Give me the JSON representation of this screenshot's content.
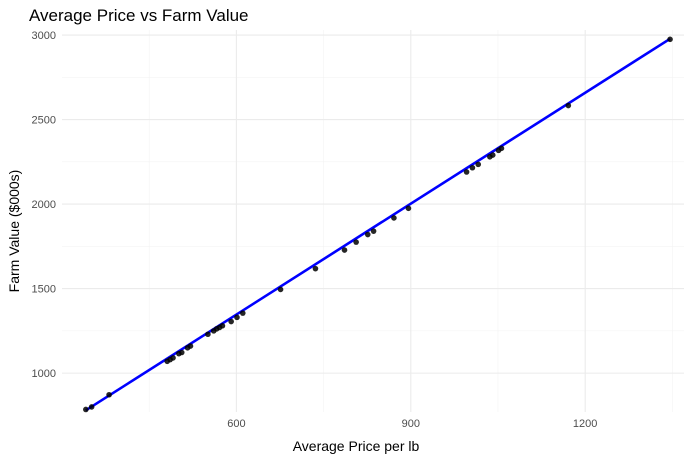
{
  "chart_data": {
    "type": "scatter",
    "title": "Average Price vs Farm Value",
    "xlabel": "Average Price per lb",
    "ylabel": "Farm Value ($000s)",
    "xlim": [
      300,
      1370
    ],
    "ylim": [
      770,
      3030
    ],
    "x_ticks": [
      600,
      900,
      1200
    ],
    "y_ticks": [
      1000,
      1500,
      2000,
      2500,
      3000
    ],
    "grid": true,
    "points_color": "#000000",
    "points": [
      {
        "x": 341,
        "y": 785
      },
      {
        "x": 351,
        "y": 800
      },
      {
        "x": 381,
        "y": 872
      },
      {
        "x": 481,
        "y": 1070
      },
      {
        "x": 486,
        "y": 1080
      },
      {
        "x": 491,
        "y": 1090
      },
      {
        "x": 501,
        "y": 1115
      },
      {
        "x": 506,
        "y": 1122
      },
      {
        "x": 516,
        "y": 1150
      },
      {
        "x": 521,
        "y": 1160
      },
      {
        "x": 551,
        "y": 1230
      },
      {
        "x": 561,
        "y": 1250
      },
      {
        "x": 566,
        "y": 1262
      },
      {
        "x": 571,
        "y": 1270
      },
      {
        "x": 576,
        "y": 1280
      },
      {
        "x": 591,
        "y": 1305
      },
      {
        "x": 601,
        "y": 1330
      },
      {
        "x": 611,
        "y": 1355
      },
      {
        "x": 676,
        "y": 1495
      },
      {
        "x": 736,
        "y": 1618
      },
      {
        "x": 786,
        "y": 1728
      },
      {
        "x": 806,
        "y": 1775
      },
      {
        "x": 826,
        "y": 1820
      },
      {
        "x": 836,
        "y": 1840
      },
      {
        "x": 871,
        "y": 1918
      },
      {
        "x": 896,
        "y": 1975
      },
      {
        "x": 996,
        "y": 2190
      },
      {
        "x": 1006,
        "y": 2215
      },
      {
        "x": 1016,
        "y": 2235
      },
      {
        "x": 1036,
        "y": 2280
      },
      {
        "x": 1041,
        "y": 2290
      },
      {
        "x": 1051,
        "y": 2318
      },
      {
        "x": 1056,
        "y": 2330
      },
      {
        "x": 1171,
        "y": 2583
      },
      {
        "x": 1346,
        "y": 2975
      }
    ],
    "fit_line": {
      "type": "linear",
      "color": "#0000ff",
      "x": [
        341,
        1346
      ],
      "y": [
        780,
        2978
      ]
    }
  }
}
